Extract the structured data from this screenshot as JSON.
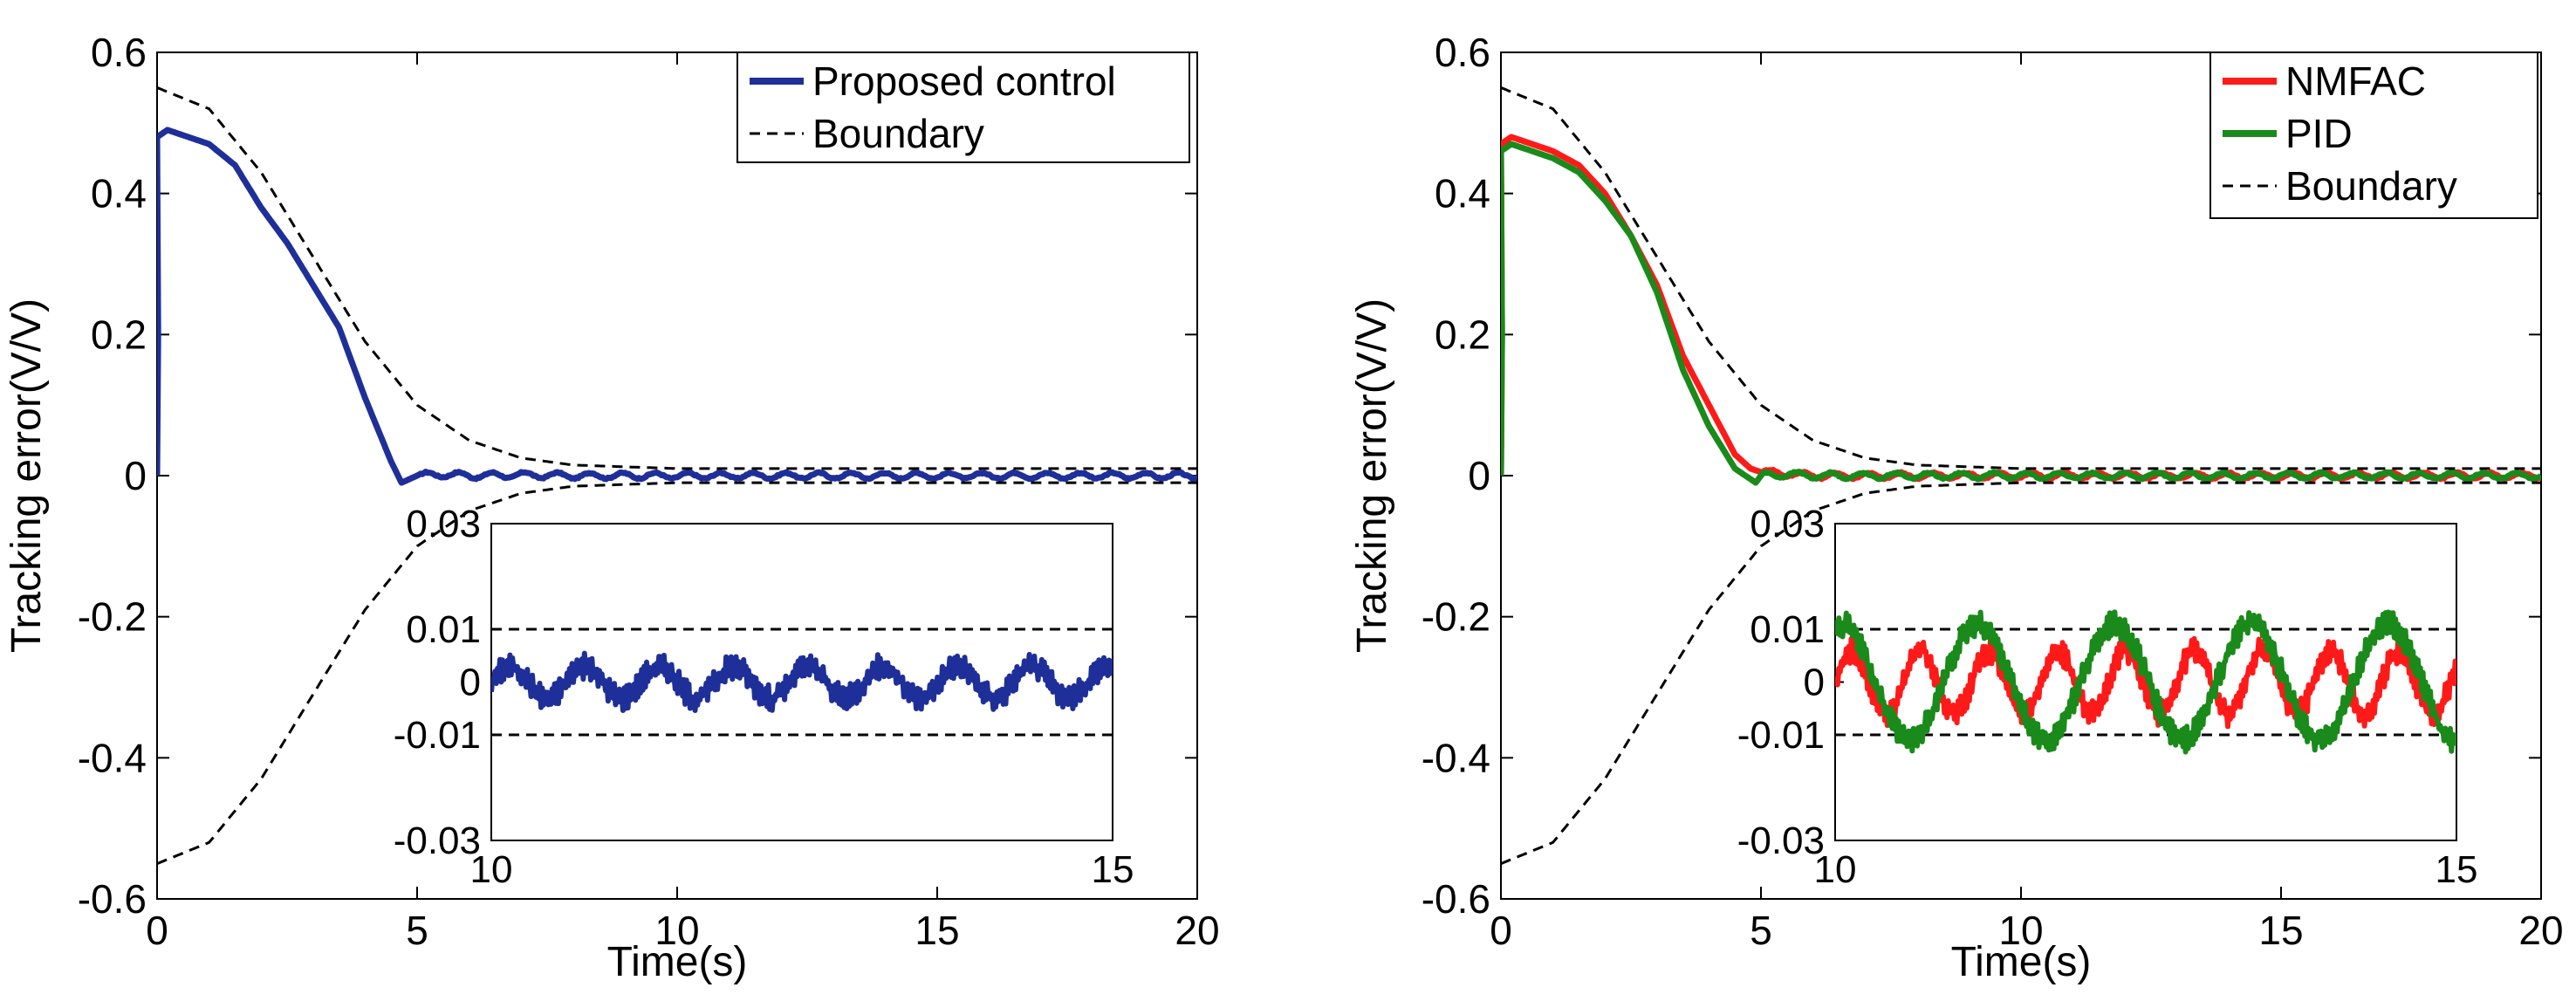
{
  "chart_data": [
    {
      "type": "line",
      "panel": "left",
      "title": "",
      "xlabel": "Time(s)",
      "ylabel": "Tracking error(V/V)",
      "xlim": [
        0,
        20
      ],
      "ylim": [
        -0.6,
        0.6
      ],
      "xticks": [
        0,
        5,
        10,
        15,
        20
      ],
      "xtick_labels": [
        "0",
        "5",
        "10",
        "15",
        "20"
      ],
      "yticks": [
        -0.6,
        -0.4,
        -0.2,
        0,
        0.2,
        0.4,
        0.6
      ],
      "ytick_labels": [
        "-0.6",
        "-0.4",
        "-0.2",
        "0",
        "0.2",
        "0.4",
        "0.6"
      ],
      "legend_position": "top-right",
      "series": [
        {
          "name": "Proposed control",
          "color": "#1f2f99",
          "style": "solid",
          "x": [
            0,
            0.2,
            1,
            1.5,
            2,
            2.5,
            3,
            3.5,
            4,
            4.5,
            4.7,
            5,
            5.5,
            6,
            7,
            8,
            10,
            20
          ],
          "values": [
            0.48,
            0.49,
            0.47,
            0.44,
            0.38,
            0.33,
            0.27,
            0.21,
            0.11,
            0.02,
            -0.01,
            0.0,
            0.002,
            0.0,
            0.001,
            0.0,
            0.0,
            0.0
          ]
        },
        {
          "name": "Boundary",
          "color": "#000000",
          "style": "dashed",
          "x": [
            0,
            1,
            2,
            3,
            4,
            5,
            6,
            7,
            8,
            10,
            20
          ],
          "values": [
            0.55,
            0.52,
            0.43,
            0.31,
            0.19,
            0.1,
            0.05,
            0.025,
            0.015,
            0.01,
            0.01
          ],
          "mirrored": true
        }
      ],
      "inset": {
        "xlim": [
          10,
          15
        ],
        "ylim": [
          -0.03,
          0.03
        ],
        "xticks": [
          10,
          15
        ],
        "xtick_labels": [
          "10",
          "15"
        ],
        "yticks": [
          -0.03,
          -0.01,
          0,
          0.01,
          0.03
        ],
        "ytick_labels": [
          "-0.03",
          "-0.01",
          "0",
          "0.01",
          "0.03"
        ],
        "boundary": 0.01,
        "series": [
          {
            "name": "Proposed control",
            "color": "#1f2f99",
            "amplitude": 0.003,
            "period": 0.6
          }
        ]
      }
    },
    {
      "type": "line",
      "panel": "right",
      "title": "",
      "xlabel": "Time(s)",
      "ylabel": "Tracking error(V/V)",
      "xlim": [
        0,
        20
      ],
      "ylim": [
        -0.6,
        0.6
      ],
      "xticks": [
        0,
        5,
        10,
        15,
        20
      ],
      "xtick_labels": [
        "0",
        "5",
        "10",
        "15",
        "20"
      ],
      "yticks": [
        -0.6,
        -0.4,
        -0.2,
        0,
        0.2,
        0.4,
        0.6
      ],
      "ytick_labels": [
        "-0.6",
        "-0.4",
        "-0.2",
        "0",
        "0.2",
        "0.4",
        "0.6"
      ],
      "legend_position": "top-right",
      "series": [
        {
          "name": "NMFAC",
          "color": "#ff1a1a",
          "style": "solid",
          "x": [
            0,
            0.2,
            1,
            1.5,
            2,
            2.5,
            3,
            3.5,
            4,
            4.5,
            4.8,
            5,
            5.5,
            6,
            8,
            20
          ],
          "values": [
            0.47,
            0.48,
            0.46,
            0.44,
            0.4,
            0.34,
            0.27,
            0.17,
            0.1,
            0.03,
            0.01,
            0.005,
            0.003,
            0.0,
            0.0,
            0.0
          ]
        },
        {
          "name": "PID",
          "color": "#1a8a1a",
          "style": "solid",
          "x": [
            0,
            0.2,
            1,
            1.5,
            2,
            2.5,
            3,
            3.5,
            4,
            4.5,
            4.9,
            5,
            5.5,
            6,
            8,
            20
          ],
          "values": [
            0.46,
            0.47,
            0.45,
            0.43,
            0.39,
            0.34,
            0.26,
            0.15,
            0.07,
            0.01,
            -0.01,
            0.0,
            0.002,
            0.0,
            0.0,
            0.0
          ]
        },
        {
          "name": "Boundary",
          "color": "#000000",
          "style": "dashed",
          "x": [
            0,
            1,
            2,
            3,
            4,
            5,
            6,
            7,
            8,
            10,
            20
          ],
          "values": [
            0.55,
            0.52,
            0.43,
            0.31,
            0.19,
            0.1,
            0.05,
            0.025,
            0.015,
            0.01,
            0.01
          ],
          "mirrored": true
        }
      ],
      "inset": {
        "xlim": [
          10,
          15
        ],
        "ylim": [
          -0.03,
          0.03
        ],
        "xticks": [
          10,
          15
        ],
        "xtick_labels": [
          "10",
          "15"
        ],
        "yticks": [
          -0.03,
          -0.01,
          0,
          0.01,
          0.03
        ],
        "ytick_labels": [
          "-0.03",
          "-0.01",
          "0",
          "0.01",
          "0.03"
        ],
        "boundary": 0.01,
        "series": [
          {
            "name": "NMFAC",
            "color": "#ff1a1a",
            "amplitude": 0.006,
            "period": 0.55
          },
          {
            "name": "PID",
            "color": "#1a8a1a",
            "amplitude": 0.011,
            "period": 1.1
          }
        ]
      }
    }
  ]
}
